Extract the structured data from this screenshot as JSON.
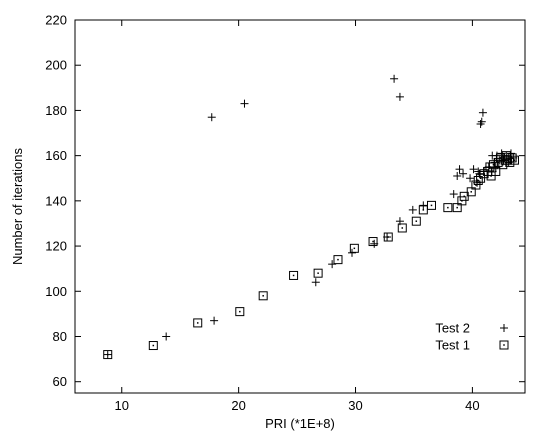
{
  "chart_data": {
    "type": "scatter",
    "title": "",
    "xlabel": "PRI (*1E+8)",
    "ylabel": "Number of iterations",
    "xlim": [
      6,
      44.5
    ],
    "ylim": [
      55,
      220
    ],
    "xticks": [
      10,
      20,
      30,
      40
    ],
    "yticks": [
      60,
      80,
      100,
      120,
      140,
      160,
      180,
      200,
      220
    ],
    "grid": false,
    "legend": "bottom-right",
    "series": [
      {
        "name": "Test 2",
        "marker": "plus",
        "points": [
          [
            8.8,
            72
          ],
          [
            13.8,
            80
          ],
          [
            17.9,
            87
          ],
          [
            17.7,
            177
          ],
          [
            20.5,
            183
          ],
          [
            26.6,
            104
          ],
          [
            28.0,
            112
          ],
          [
            29.7,
            117
          ],
          [
            31.6,
            121
          ],
          [
            32.7,
            124
          ],
          [
            33.3,
            194
          ],
          [
            33.8,
            186
          ],
          [
            33.8,
            131
          ],
          [
            34.9,
            136
          ],
          [
            35.8,
            138
          ],
          [
            38.4,
            143
          ],
          [
            38.7,
            151
          ],
          [
            38.9,
            154
          ],
          [
            39.2,
            152
          ],
          [
            39.8,
            150
          ],
          [
            40.1,
            154
          ],
          [
            40.4,
            148
          ],
          [
            40.6,
            152
          ],
          [
            40.7,
            174
          ],
          [
            40.8,
            175
          ],
          [
            40.9,
            179
          ],
          [
            41.0,
            153
          ],
          [
            41.4,
            155
          ],
          [
            41.7,
            160
          ],
          [
            41.9,
            157
          ],
          [
            42.1,
            160
          ],
          [
            42.3,
            158
          ],
          [
            42.5,
            161
          ],
          [
            42.7,
            159
          ],
          [
            42.9,
            160
          ],
          [
            43.1,
            157
          ],
          [
            43.3,
            161
          ],
          [
            43.5,
            159
          ],
          [
            40.5,
            153
          ],
          [
            42.0,
            155
          ]
        ]
      },
      {
        "name": "Test 1",
        "marker": "square",
        "points": [
          [
            8.8,
            72
          ],
          [
            12.7,
            76
          ],
          [
            16.5,
            86
          ],
          [
            20.1,
            91
          ],
          [
            22.1,
            98
          ],
          [
            24.7,
            107
          ],
          [
            26.8,
            108
          ],
          [
            28.5,
            114
          ],
          [
            29.9,
            119
          ],
          [
            31.5,
            122
          ],
          [
            32.8,
            124
          ],
          [
            34.0,
            128
          ],
          [
            35.2,
            131
          ],
          [
            35.8,
            136
          ],
          [
            36.5,
            138
          ],
          [
            37.9,
            137
          ],
          [
            38.7,
            137
          ],
          [
            39.1,
            140
          ],
          [
            39.3,
            142
          ],
          [
            39.9,
            144
          ],
          [
            40.3,
            147
          ],
          [
            40.5,
            149
          ],
          [
            40.7,
            150
          ],
          [
            41.0,
            152
          ],
          [
            41.3,
            153
          ],
          [
            41.6,
            151
          ],
          [
            41.8,
            156
          ],
          [
            42.0,
            153
          ],
          [
            42.2,
            157
          ],
          [
            42.4,
            159
          ],
          [
            42.6,
            156
          ],
          [
            42.8,
            158
          ],
          [
            43.0,
            158
          ],
          [
            43.2,
            157
          ],
          [
            43.4,
            159
          ],
          [
            43.6,
            158
          ],
          [
            41.5,
            155
          ],
          [
            42.9,
            160
          ]
        ]
      }
    ]
  }
}
